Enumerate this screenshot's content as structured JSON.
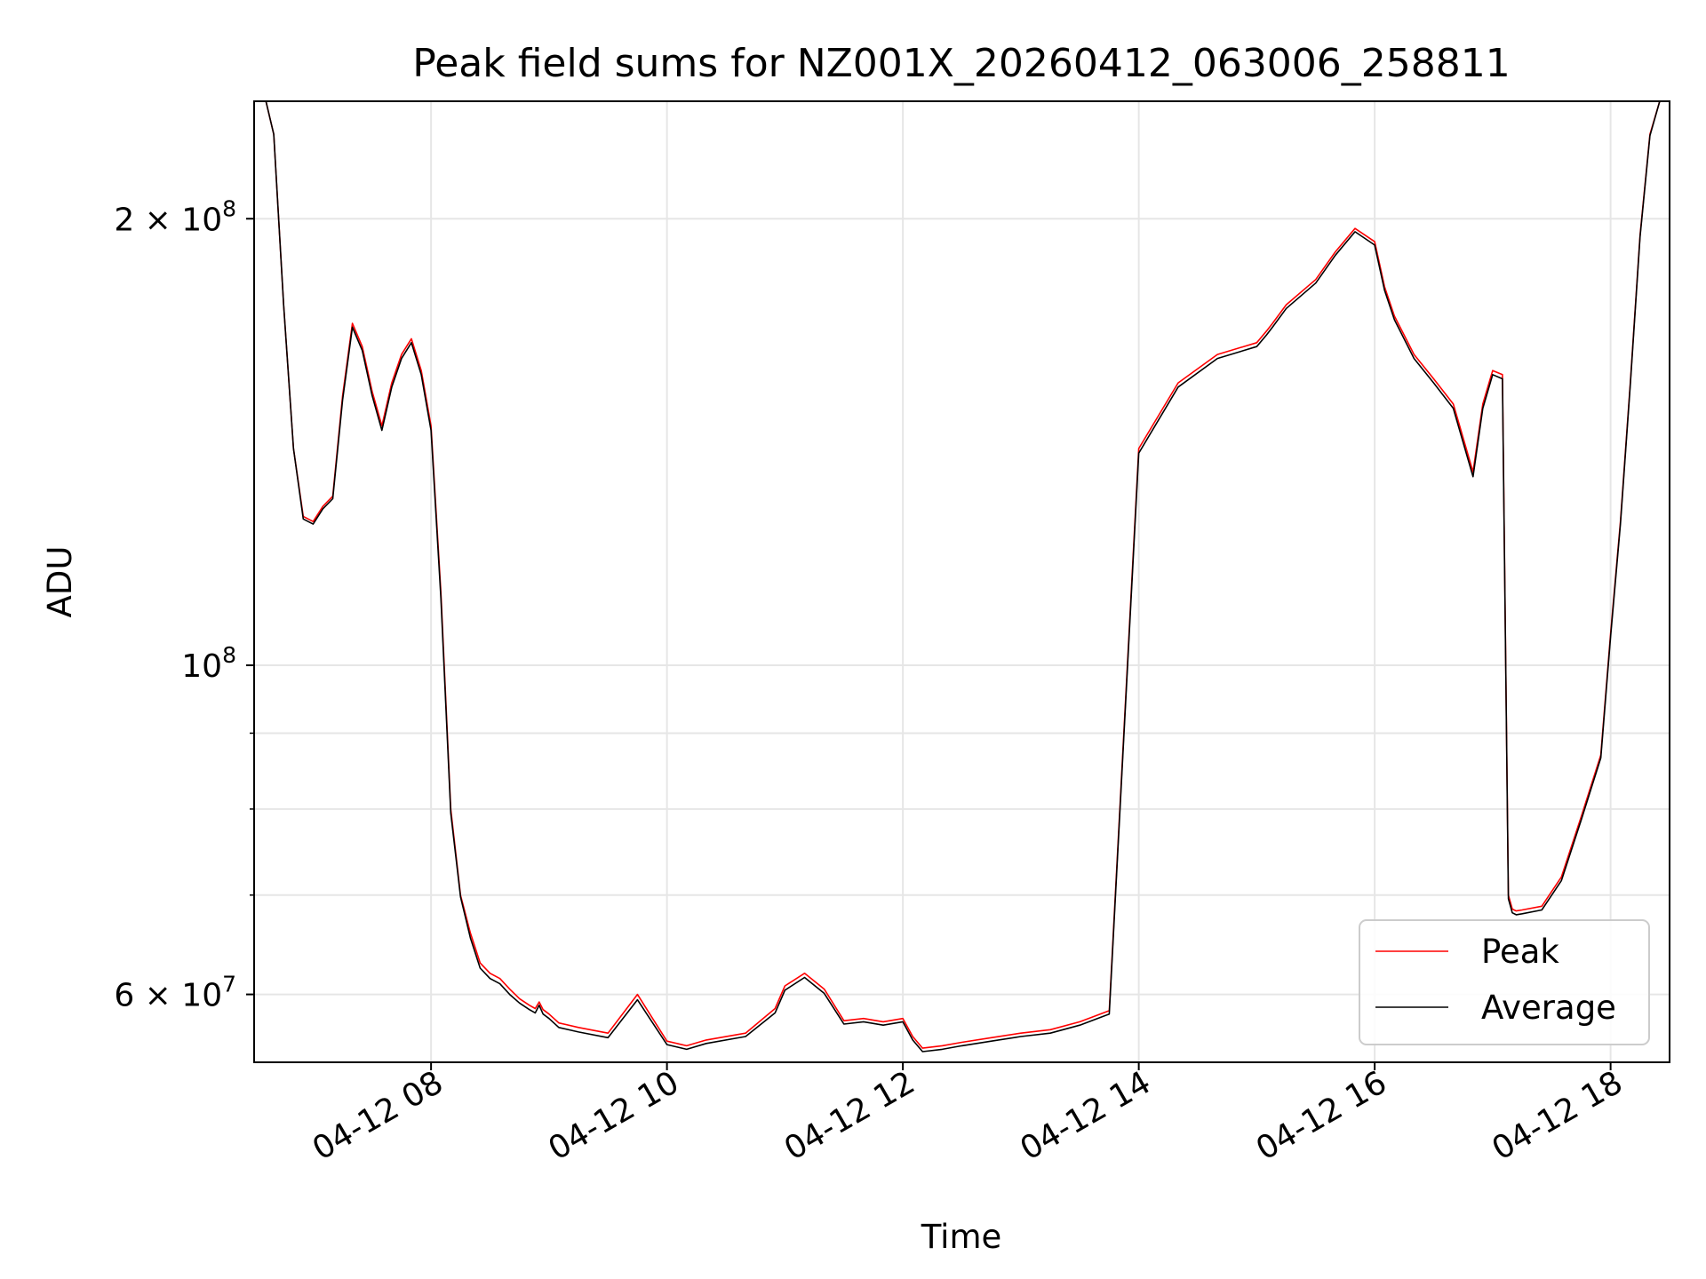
{
  "chart_data": {
    "type": "line",
    "title": "Peak field sums for NZ001X_20260412_063006_258811",
    "xlabel": "Time",
    "ylabel": "ADU",
    "yscale": "log",
    "ylim": [
      54000000,
      240000000
    ],
    "xlim": [
      "2026-04-12 06:30",
      "2026-04-12 18:30"
    ],
    "grid": true,
    "legend_position": "lower-right",
    "x_ticks": [
      {
        "value": "2026-04-12 08:00",
        "label": "04-12 08"
      },
      {
        "value": "2026-04-12 10:00",
        "label": "04-12 10"
      },
      {
        "value": "2026-04-12 12:00",
        "label": "04-12 12"
      },
      {
        "value": "2026-04-12 14:00",
        "label": "04-12 14"
      },
      {
        "value": "2026-04-12 16:00",
        "label": "04-12 16"
      },
      {
        "value": "2026-04-12 18:00",
        "label": "04-12 18"
      }
    ],
    "y_major_ticks": [
      {
        "value": 60000000,
        "base": "6 × 10",
        "exp": "7"
      },
      {
        "value": 100000000,
        "base": "10",
        "exp": "8"
      },
      {
        "value": 200000000,
        "base": "2 × 10",
        "exp": "8"
      }
    ],
    "y_minor_ticks": [
      70000000,
      80000000,
      90000000
    ],
    "x": [
      "06:31",
      "06:36",
      "06:40",
      "06:45",
      "06:50",
      "06:55",
      "07:00",
      "07:05",
      "07:10",
      "07:15",
      "07:20",
      "07:25",
      "07:30",
      "07:35",
      "07:40",
      "07:45",
      "07:50",
      "07:55",
      "08:00",
      "08:05",
      "08:10",
      "08:15",
      "08:20",
      "08:25",
      "08:30",
      "08:35",
      "08:40",
      "08:45",
      "08:50",
      "08:53",
      "08:55",
      "08:57",
      "09:00",
      "09:05",
      "09:15",
      "09:30",
      "09:45",
      "10:00",
      "10:10",
      "10:20",
      "10:40",
      "10:55",
      "11:00",
      "11:10",
      "11:20",
      "11:30",
      "11:40",
      "11:50",
      "12:00",
      "12:05",
      "12:10",
      "12:20",
      "12:30",
      "12:45",
      "13:00",
      "13:15",
      "13:30",
      "13:45",
      "14:00",
      "14:20",
      "14:40",
      "15:00",
      "15:05",
      "15:08",
      "15:15",
      "15:30",
      "15:40",
      "15:50",
      "16:00",
      "16:05",
      "16:10",
      "16:20",
      "16:30",
      "16:40",
      "16:50",
      "16:55",
      "17:00",
      "17:05",
      "17:08",
      "17:10",
      "17:12",
      "17:15",
      "17:25",
      "17:35",
      "17:45",
      "17:55",
      "18:00",
      "18:05",
      "18:10",
      "18:15",
      "18:20",
      "18:25"
    ],
    "series": [
      {
        "name": "Peak",
        "color": "#ff0000",
        "values": [
          240000000,
          240000000,
          228000000,
          175000000,
          140000000,
          126000000,
          125000000,
          128000000,
          130000000,
          152000000,
          170000000,
          164000000,
          153000000,
          145000000,
          155000000,
          162000000,
          166000000,
          158000000,
          145000000,
          112000000,
          80000000,
          70000000,
          66000000,
          63000000,
          62000000,
          61500000,
          60500000,
          59600000,
          59000000,
          58700000,
          59300000,
          58600000,
          58200000,
          57400000,
          57000000,
          56500000,
          60000000,
          55800000,
          55400000,
          55900000,
          56500000,
          58700000,
          60800000,
          62000000,
          60500000,
          57600000,
          57800000,
          57500000,
          57800000,
          56200000,
          55200000,
          55400000,
          55700000,
          56100000,
          56500000,
          56800000,
          57500000,
          58500000,
          140000000,
          155000000,
          162000000,
          165000000,
          168000000,
          170000000,
          175000000,
          182000000,
          190000000,
          197000000,
          193000000,
          180000000,
          172000000,
          162000000,
          156000000,
          150000000,
          135000000,
          150000000,
          158000000,
          157000000,
          70000000,
          68500000,
          68300000,
          68400000,
          68800000,
          72000000,
          79000000,
          87000000,
          105000000,
          125000000,
          155000000,
          195000000,
          228000000,
          240000000
        ]
      },
      {
        "name": "Average",
        "color": "#000000",
        "values": [
          240000000,
          240000000,
          228000000,
          175000000,
          140000000,
          125500000,
          124500000,
          127500000,
          129500000,
          151000000,
          169000000,
          163000000,
          152000000,
          144000000,
          154000000,
          161000000,
          165000000,
          157000000,
          144000000,
          111000000,
          79500000,
          69800000,
          65500000,
          62500000,
          61500000,
          61000000,
          60000000,
          59200000,
          58600000,
          58300000,
          59000000,
          58200000,
          57800000,
          57000000,
          56600000,
          56100000,
          59500000,
          55500000,
          55100000,
          55600000,
          56200000,
          58300000,
          60400000,
          61600000,
          60100000,
          57300000,
          57500000,
          57200000,
          57500000,
          55900000,
          54900000,
          55100000,
          55400000,
          55800000,
          56200000,
          56500000,
          57200000,
          58200000,
          139000000,
          154000000,
          161000000,
          164000000,
          167000000,
          169000000,
          174000000,
          181000000,
          189000000,
          196000000,
          192000000,
          179000000,
          171000000,
          161000000,
          155000000,
          149000000,
          134000000,
          149000000,
          157000000,
          156000000,
          69600000,
          68100000,
          67900000,
          68000000,
          68400000,
          71600000,
          78600000,
          86600000,
          104500000,
          124500000,
          154500000,
          194500000,
          227500000,
          240000000
        ]
      }
    ]
  }
}
